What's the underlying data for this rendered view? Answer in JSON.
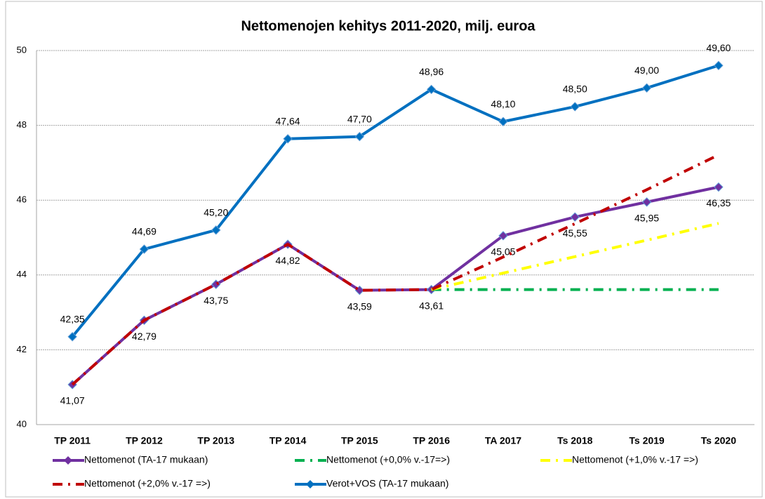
{
  "chart_data": {
    "type": "line",
    "title": "Nettomenojen kehitys 2011-2020, milj. euroa",
    "categories": [
      "TP 2011",
      "TP 2012",
      "TP 2013",
      "TP 2014",
      "TP 2015",
      "TP 2016",
      "TA 2017",
      "Ts 2018",
      "Ts 2019",
      "Ts 2020"
    ],
    "ylim": [
      40,
      50
    ],
    "yticks": [
      40,
      42,
      44,
      46,
      48,
      50
    ],
    "grid": true,
    "legend": "bottom",
    "series": [
      {
        "name": "Nettomenot (TA-17 mukaan)",
        "color": "#7030a0",
        "style": "solid",
        "marker": "diamond",
        "label_side": "below",
        "values": [
          41.07,
          42.79,
          43.75,
          44.82,
          43.59,
          43.61,
          45.05,
          45.55,
          45.95,
          46.35
        ],
        "value_labels": [
          "41,07",
          "42,79",
          "43,75",
          "44,82",
          "43,59",
          "43,61",
          "45,05",
          "45,55",
          "45,95",
          "46,35"
        ]
      },
      {
        "name": "Nettomenot (+0,0% v.-17=>)",
        "color": "#00b050",
        "style": "dashdot",
        "values": [
          null,
          null,
          null,
          null,
          null,
          43.61,
          43.61,
          43.61,
          43.61,
          43.61
        ]
      },
      {
        "name": "Nettomenot (+1,0% v.-17 =>)",
        "color": "#ffff00",
        "style": "dashdot",
        "values": [
          null,
          null,
          null,
          null,
          null,
          43.61,
          44.05,
          44.49,
          44.93,
          45.38
        ]
      },
      {
        "name": "Nettomenot (+2,0% v.-17 =>)",
        "color": "#c00000",
        "style": "dashdot",
        "values": [
          41.07,
          42.79,
          43.75,
          44.82,
          43.59,
          43.61,
          44.48,
          45.37,
          46.28,
          47.21
        ]
      },
      {
        "name": "Verot+VOS (TA-17 mukaan)",
        "color": "#0070c0",
        "style": "solid",
        "marker": "diamond",
        "label_side": "above",
        "values": [
          42.35,
          44.69,
          45.2,
          47.64,
          47.7,
          48.96,
          48.1,
          48.5,
          49.0,
          49.6
        ],
        "value_labels": [
          "42,35",
          "44,69",
          "45,20",
          "47,64",
          "47,70",
          "48,96",
          "48,10",
          "48,50",
          "49,00",
          "49,60"
        ]
      }
    ]
  }
}
